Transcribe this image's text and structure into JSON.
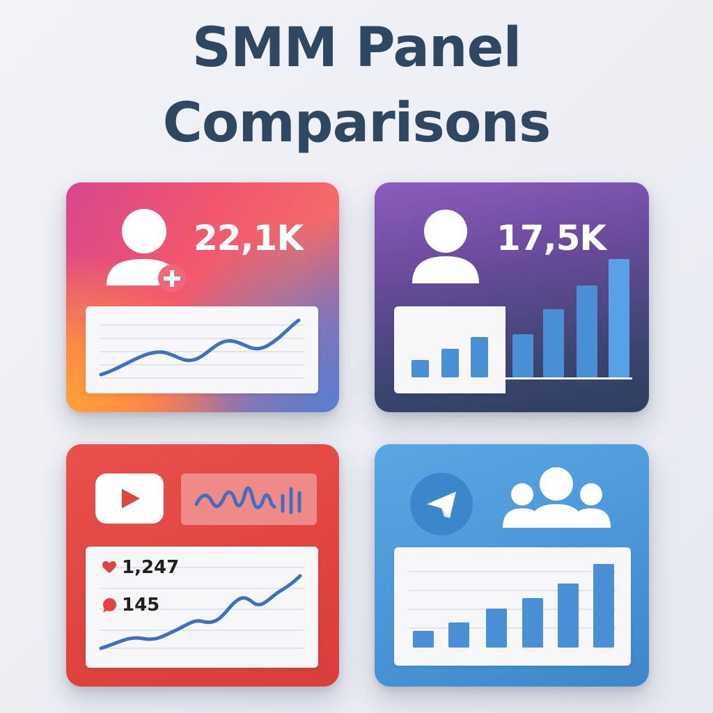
{
  "title": {
    "line1": "SMM Panel",
    "line2": "Comparisons"
  },
  "cards": {
    "instagram": {
      "followers": "22,1K",
      "icons": [
        "add-user-icon"
      ],
      "chart_type": "line"
    },
    "facebook": {
      "followers": "17,5K",
      "icons": [
        "user-icon"
      ],
      "chart_type": "bar"
    },
    "youtube": {
      "likes": "1,247",
      "comments": "145",
      "icons": [
        "youtube-play-icon",
        "heart-icon",
        "comment-icon"
      ],
      "chart_type": "line"
    },
    "telegram": {
      "icons": [
        "telegram-plane-icon",
        "group-icon"
      ],
      "chart_type": "bar"
    }
  },
  "colors": {
    "title": "#2f4760",
    "chart_line": "#3f6fc0",
    "chart_bar": "#4a8fd6",
    "instagram_gradient": [
      "#d7478e",
      "#f2566e",
      "#ffa13a"
    ],
    "facebook_gradient": [
      "#8c5cbd",
      "#2f3e5e"
    ],
    "youtube_red": "#e04440",
    "telegram_blue": "#4a94d6"
  }
}
